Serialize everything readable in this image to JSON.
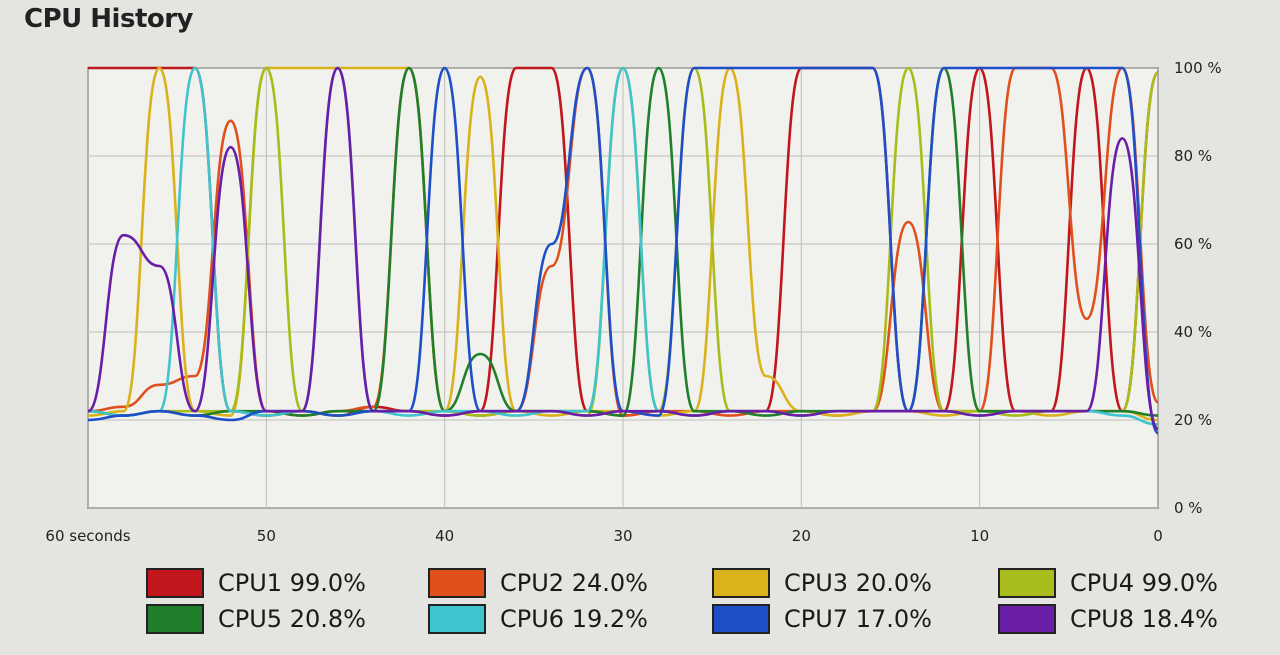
{
  "window": {
    "title": "CPU History"
  },
  "chart_data": {
    "type": "line",
    "title": "CPU History",
    "x_tick_labels": [
      "60 seconds",
      "50",
      "40",
      "30",
      "20",
      "10",
      "0"
    ],
    "x_ticks": [
      60,
      50,
      40,
      30,
      20,
      10,
      0
    ],
    "xlim": [
      60,
      0
    ],
    "y_tick_labels": [
      "100 %",
      "80 %",
      "60 %",
      "40 %",
      "20 %",
      "0 %"
    ],
    "y_ticks": [
      100,
      80,
      60,
      40,
      20,
      0
    ],
    "ylim": [
      0,
      100
    ],
    "grid": true,
    "legend_position": "bottom",
    "x": [
      60,
      58,
      56,
      54,
      52,
      50,
      48,
      46,
      44,
      42,
      40,
      38,
      36,
      34,
      32,
      30,
      28,
      26,
      24,
      22,
      20,
      18,
      16,
      14,
      12,
      10,
      8,
      6,
      4,
      2,
      0
    ],
    "series": [
      {
        "name": "CPU1",
        "percent_label": "99.0%",
        "color": "#c0161c",
        "values": [
          100,
          100,
          100,
          100,
          22,
          21,
          22,
          21,
          23,
          22,
          21,
          22,
          100,
          100,
          22,
          21,
          22,
          21,
          22,
          22,
          100,
          100,
          100,
          22,
          22,
          100,
          22,
          22,
          100,
          22,
          99
        ]
      },
      {
        "name": "CPU2",
        "percent_label": "24.0%",
        "color": "#e0501c",
        "values": [
          22,
          23,
          28,
          30,
          88,
          22,
          21,
          22,
          23,
          100,
          22,
          21,
          22,
          55,
          100,
          21,
          22,
          22,
          21,
          22,
          22,
          21,
          22,
          65,
          22,
          22,
          100,
          100,
          43,
          100,
          24
        ]
      },
      {
        "name": "CPU3",
        "percent_label": "20.0%",
        "color": "#d9b21c",
        "values": [
          21,
          22,
          100,
          22,
          21,
          100,
          100,
          100,
          100,
          100,
          22,
          98,
          22,
          21,
          22,
          22,
          21,
          22,
          100,
          30,
          22,
          21,
          22,
          22,
          21,
          22,
          22,
          21,
          22,
          22,
          20
        ]
      },
      {
        "name": "CPU4",
        "percent_label": "99.0%",
        "color": "#a8bc1c",
        "values": [
          22,
          21,
          22,
          22,
          22,
          100,
          22,
          21,
          22,
          22,
          22,
          21,
          22,
          22,
          21,
          100,
          22,
          100,
          22,
          22,
          21,
          22,
          22,
          100,
          22,
          22,
          21,
          22,
          22,
          22,
          99
        ]
      },
      {
        "name": "CPU5",
        "percent_label": "20.8%",
        "color": "#1f7f2a",
        "values": [
          22,
          21,
          22,
          21,
          22,
          22,
          21,
          22,
          22,
          100,
          22,
          35,
          22,
          22,
          22,
          21,
          100,
          22,
          22,
          21,
          22,
          22,
          22,
          22,
          100,
          22,
          22,
          22,
          22,
          22,
          21
        ]
      },
      {
        "name": "CPU6",
        "percent_label": "19.2%",
        "color": "#3fc3cc",
        "values": [
          22,
          21,
          22,
          100,
          22,
          21,
          22,
          100,
          22,
          21,
          22,
          22,
          21,
          22,
          22,
          100,
          22,
          21,
          22,
          22,
          21,
          22,
          22,
          22,
          22,
          21,
          22,
          22,
          22,
          21,
          19
        ]
      },
      {
        "name": "CPU7",
        "percent_label": "17.0%",
        "color": "#1f4fc8",
        "values": [
          20,
          21,
          22,
          21,
          20,
          22,
          22,
          21,
          22,
          22,
          100,
          22,
          22,
          60,
          100,
          22,
          21,
          100,
          100,
          100,
          100,
          100,
          100,
          22,
          100,
          100,
          100,
          100,
          100,
          100,
          17
        ]
      },
      {
        "name": "CPU8",
        "percent_label": "18.4%",
        "color": "#6a1ea8",
        "values": [
          22,
          62,
          55,
          22,
          82,
          22,
          22,
          100,
          22,
          22,
          21,
          22,
          22,
          22,
          21,
          22,
          22,
          21,
          22,
          22,
          21,
          22,
          22,
          22,
          22,
          21,
          22,
          22,
          22,
          84,
          18
        ]
      }
    ]
  }
}
